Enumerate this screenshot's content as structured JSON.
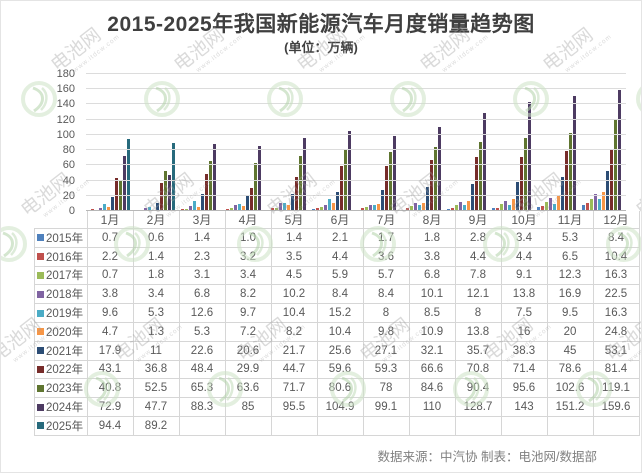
{
  "title": "2015-2025年我国新能源汽车月度销量趋势图",
  "subtitle": "(单位：万辆)",
  "footer": "数据来源：中汽协  制表：电池网/数据部",
  "watermark": {
    "text": "电池网",
    "url": "www.itdcw.com"
  },
  "chart_data": {
    "type": "bar",
    "title": "2015-2025年我国新能源汽车月度销量趋势图",
    "unit_label": "(单位：万辆)",
    "ylabel": "",
    "xlabel": "",
    "ylim": [
      0,
      180
    ],
    "ytick_step": 20,
    "grid": true,
    "legend_position": "table-left",
    "categories": [
      "1月",
      "2月",
      "3月",
      "4月",
      "5月",
      "6月",
      "7月",
      "8月",
      "9月",
      "10月",
      "11月",
      "12月"
    ],
    "series": [
      {
        "name": "2015年",
        "color": "#4F81BD",
        "values": [
          "0.7",
          "0.6",
          "1.4",
          "1.0",
          "1.4",
          "2.1",
          "1.7",
          "1.8",
          "2.8",
          "3.4",
          "5.3",
          "8.4"
        ]
      },
      {
        "name": "2016年",
        "color": "#C0504D",
        "values": [
          "2.2",
          "1.4",
          "2.3",
          "3.2",
          "3.5",
          "4.4",
          "3.6",
          "3.8",
          "4.4",
          "4.4",
          "6.5",
          "10.4"
        ]
      },
      {
        "name": "2017年",
        "color": "#9BBB59",
        "values": [
          "0.7",
          "1.8",
          "3.1",
          "3.4",
          "4.5",
          "5.9",
          "5.7",
          "6.8",
          "7.8",
          "9.1",
          "12.3",
          "16.3"
        ]
      },
      {
        "name": "2018年",
        "color": "#8064A2",
        "values": [
          "3.8",
          "3.4",
          "6.8",
          "8.2",
          "10.2",
          "8.4",
          "8.4",
          "10.1",
          "12.1",
          "13.8",
          "16.9",
          "22.5"
        ]
      },
      {
        "name": "2019年",
        "color": "#4BACC6",
        "values": [
          "9.6",
          "5.3",
          "12.6",
          "9.7",
          "10.4",
          "15.2",
          "8",
          "8.5",
          "8",
          "7.5",
          "9.5",
          "16.3"
        ]
      },
      {
        "name": "2020年",
        "color": "#F79646",
        "values": [
          "4.7",
          "1.3",
          "5.3",
          "7.2",
          "8.2",
          "10.4",
          "9.8",
          "10.9",
          "13.8",
          "16",
          "20",
          "24.8"
        ]
      },
      {
        "name": "2021年",
        "color": "#2C4D75",
        "values": [
          "17.9",
          "11",
          "22.6",
          "20.6",
          "21.7",
          "25.6",
          "27.1",
          "32.1",
          "35.7",
          "38.3",
          "45",
          "53.1"
        ]
      },
      {
        "name": "2022年",
        "color": "#772C2A",
        "values": [
          "43.1",
          "36.8",
          "48.4",
          "29.9",
          "44.7",
          "59.6",
          "59.3",
          "66.6",
          "70.8",
          "71.4",
          "78.6",
          "81.4"
        ]
      },
      {
        "name": "2023年",
        "color": "#5F7530",
        "values": [
          "40.8",
          "52.5",
          "65.3",
          "63.6",
          "71.7",
          "80.6",
          "78",
          "84.6",
          "90.4",
          "95.6",
          "102.6",
          "119.1"
        ]
      },
      {
        "name": "2024年",
        "color": "#4D3B62",
        "values": [
          "72.9",
          "47.7",
          "88.3",
          "85",
          "95.5",
          "104.9",
          "99.1",
          "110",
          "128.7",
          "143",
          "151.2",
          "159.6"
        ]
      },
      {
        "name": "2025年",
        "color": "#276A7C",
        "values": [
          "94.4",
          "89.2",
          "",
          "",
          "",
          "",
          "",
          "",
          "",
          "",
          "",
          ""
        ]
      }
    ]
  }
}
